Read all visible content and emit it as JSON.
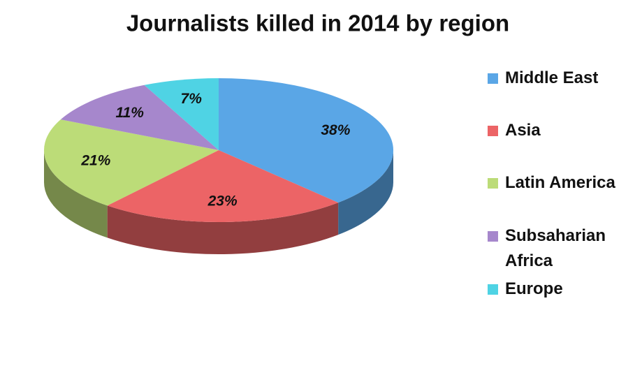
{
  "chart_data": {
    "type": "pie3d",
    "title": "Journalists killed in 2014 by region",
    "categories": [
      "Middle East",
      "Asia",
      "Latin America",
      "Subsaharian Africa",
      "Europe"
    ],
    "values": [
      38,
      23,
      21,
      11,
      7
    ],
    "value_labels": [
      "38%",
      "23%",
      "21%",
      "11%",
      "7%"
    ],
    "colors": [
      "#5aa6e6",
      "#ec6466",
      "#bcdc78",
      "#a687cc",
      "#4fd3e4"
    ],
    "legend": "right"
  }
}
